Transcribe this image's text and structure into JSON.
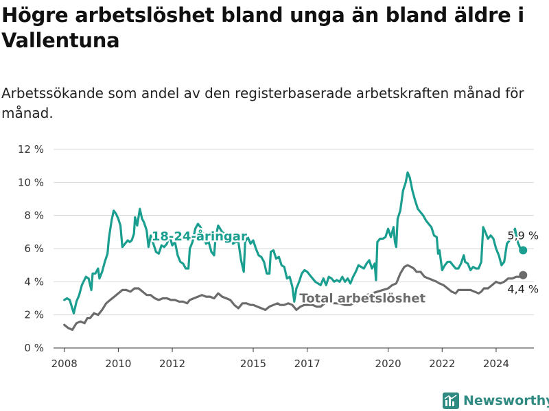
{
  "title": "Högre arbetslöshet bland unga än bland äldre i Vallentuna",
  "subtitle": "Arbetssökande som andel av den registerbaserade arbetskraften månad för månad.",
  "logo": {
    "text": "Newsworthy",
    "icon": "bar-chart-logo-icon"
  },
  "colors": {
    "youth": "#1a9e8f",
    "total": "#6b6b6b",
    "grid": "#d9d9d9",
    "text": "#333333",
    "logo": "#2f8a82"
  },
  "chart_data": {
    "type": "line",
    "ylim": [
      0,
      12
    ],
    "xlim": [
      2007.6,
      2025.4
    ],
    "yticks": [
      {
        "value": 0,
        "label": "0 %"
      },
      {
        "value": 2,
        "label": "2 %"
      },
      {
        "value": 4,
        "label": "4 %"
      },
      {
        "value": 6,
        "label": "6 %"
      },
      {
        "value": 8,
        "label": "8 %"
      },
      {
        "value": 10,
        "label": "10 %"
      },
      {
        "value": 12,
        "label": "12 %"
      }
    ],
    "xticks": [
      {
        "value": 2008,
        "label": "2008"
      },
      {
        "value": 2010,
        "label": "2010"
      },
      {
        "value": 2012,
        "label": "2012"
      },
      {
        "value": 2015,
        "label": "2015"
      },
      {
        "value": 2017,
        "label": "2017"
      },
      {
        "value": 2020,
        "label": "2020"
      },
      {
        "value": 2022,
        "label": "2022"
      },
      {
        "value": 2024,
        "label": "2024"
      }
    ],
    "grid": true,
    "series": [
      {
        "name": "18-24-åringar",
        "color": "#1a9e8f",
        "last_label": "5,9 %",
        "points": [
          [
            2008.0,
            2.9
          ],
          [
            2008.1,
            3.0
          ],
          [
            2008.2,
            2.9
          ],
          [
            2008.35,
            2.1
          ],
          [
            2008.45,
            2.8
          ],
          [
            2008.55,
            3.2
          ],
          [
            2008.65,
            3.8
          ],
          [
            2008.8,
            4.3
          ],
          [
            2008.9,
            4.2
          ],
          [
            2009.0,
            3.5
          ],
          [
            2009.05,
            4.5
          ],
          [
            2009.15,
            4.5
          ],
          [
            2009.25,
            4.8
          ],
          [
            2009.3,
            4.2
          ],
          [
            2009.4,
            4.6
          ],
          [
            2009.5,
            5.2
          ],
          [
            2009.6,
            5.7
          ],
          [
            2009.65,
            6.6
          ],
          [
            2009.75,
            7.7
          ],
          [
            2009.83,
            8.3
          ],
          [
            2009.92,
            8.1
          ],
          [
            2010.0,
            7.8
          ],
          [
            2010.08,
            7.4
          ],
          [
            2010.15,
            6.1
          ],
          [
            2010.25,
            6.3
          ],
          [
            2010.35,
            6.5
          ],
          [
            2010.42,
            6.4
          ],
          [
            2010.5,
            6.5
          ],
          [
            2010.58,
            6.9
          ],
          [
            2010.62,
            7.9
          ],
          [
            2010.7,
            7.4
          ],
          [
            2010.8,
            8.4
          ],
          [
            2010.88,
            7.8
          ],
          [
            2010.95,
            7.6
          ],
          [
            2011.05,
            7.1
          ],
          [
            2011.12,
            6.1
          ],
          [
            2011.2,
            6.8
          ],
          [
            2011.3,
            6.3
          ],
          [
            2011.4,
            5.8
          ],
          [
            2011.5,
            5.7
          ],
          [
            2011.6,
            6.2
          ],
          [
            2011.7,
            6.1
          ],
          [
            2011.8,
            6.3
          ],
          [
            2011.9,
            6.8
          ],
          [
            2012.0,
            6.2
          ],
          [
            2012.1,
            6.4
          ],
          [
            2012.2,
            5.6
          ],
          [
            2012.3,
            5.2
          ],
          [
            2012.4,
            5.1
          ],
          [
            2012.5,
            4.8
          ],
          [
            2012.6,
            4.8
          ],
          [
            2012.65,
            6.0
          ],
          [
            2012.75,
            6.4
          ],
          [
            2012.85,
            7.2
          ],
          [
            2012.95,
            7.5
          ],
          [
            2013.05,
            7.3
          ],
          [
            2013.15,
            6.9
          ],
          [
            2013.25,
            6.3
          ],
          [
            2013.35,
            6.4
          ],
          [
            2013.45,
            5.8
          ],
          [
            2013.55,
            5.6
          ],
          [
            2013.6,
            6.6
          ],
          [
            2013.7,
            7.4
          ],
          [
            2013.85,
            7.0
          ],
          [
            2014.05,
            6.8
          ],
          [
            2014.15,
            6.9
          ],
          [
            2014.25,
            6.3
          ],
          [
            2014.35,
            6.4
          ],
          [
            2014.45,
            6.4
          ],
          [
            2014.55,
            5.3
          ],
          [
            2014.65,
            4.6
          ],
          [
            2014.7,
            6.4
          ],
          [
            2014.8,
            6.7
          ],
          [
            2014.9,
            6.3
          ],
          [
            2015.0,
            6.5
          ],
          [
            2015.1,
            6.0
          ],
          [
            2015.2,
            5.6
          ],
          [
            2015.3,
            5.5
          ],
          [
            2015.4,
            5.2
          ],
          [
            2015.5,
            4.5
          ],
          [
            2015.6,
            4.5
          ],
          [
            2015.65,
            5.8
          ],
          [
            2015.75,
            5.9
          ],
          [
            2015.85,
            5.4
          ],
          [
            2015.95,
            5.5
          ],
          [
            2016.05,
            5.0
          ],
          [
            2016.15,
            4.9
          ],
          [
            2016.25,
            4.2
          ],
          [
            2016.35,
            4.3
          ],
          [
            2016.45,
            3.7
          ],
          [
            2016.52,
            2.8
          ],
          [
            2016.6,
            3.6
          ],
          [
            2016.7,
            4.0
          ],
          [
            2016.8,
            4.5
          ],
          [
            2016.9,
            4.7
          ],
          [
            2017.0,
            4.6
          ],
          [
            2017.1,
            4.4
          ],
          [
            2017.2,
            4.2
          ],
          [
            2017.3,
            4.0
          ],
          [
            2017.4,
            3.9
          ],
          [
            2017.5,
            3.8
          ],
          [
            2017.6,
            4.2
          ],
          [
            2017.7,
            3.8
          ],
          [
            2017.8,
            4.3
          ],
          [
            2017.9,
            4.2
          ],
          [
            2018.0,
            4.0
          ],
          [
            2018.1,
            4.1
          ],
          [
            2018.2,
            4.0
          ],
          [
            2018.3,
            4.3
          ],
          [
            2018.4,
            4.0
          ],
          [
            2018.5,
            4.2
          ],
          [
            2018.6,
            3.9
          ],
          [
            2018.7,
            4.3
          ],
          [
            2018.8,
            4.6
          ],
          [
            2018.9,
            5.0
          ],
          [
            2019.0,
            4.9
          ],
          [
            2019.1,
            4.8
          ],
          [
            2019.2,
            5.1
          ],
          [
            2019.3,
            5.3
          ],
          [
            2019.4,
            4.8
          ],
          [
            2019.5,
            5.1
          ],
          [
            2019.55,
            4.1
          ],
          [
            2019.6,
            6.4
          ],
          [
            2019.7,
            6.6
          ],
          [
            2019.8,
            6.6
          ],
          [
            2019.9,
            6.7
          ],
          [
            2020.0,
            7.2
          ],
          [
            2020.1,
            6.7
          ],
          [
            2020.2,
            7.3
          ],
          [
            2020.25,
            6.4
          ],
          [
            2020.3,
            6.1
          ],
          [
            2020.35,
            7.8
          ],
          [
            2020.45,
            8.3
          ],
          [
            2020.55,
            9.5
          ],
          [
            2020.65,
            10.0
          ],
          [
            2020.72,
            10.6
          ],
          [
            2020.8,
            10.3
          ],
          [
            2020.9,
            9.5
          ],
          [
            2021.0,
            8.9
          ],
          [
            2021.1,
            8.4
          ],
          [
            2021.2,
            8.2
          ],
          [
            2021.3,
            8.0
          ],
          [
            2021.4,
            7.7
          ],
          [
            2021.5,
            7.5
          ],
          [
            2021.6,
            7.3
          ],
          [
            2021.7,
            6.8
          ],
          [
            2021.8,
            6.7
          ],
          [
            2021.85,
            5.7
          ],
          [
            2021.9,
            5.9
          ],
          [
            2022.0,
            4.7
          ],
          [
            2022.1,
            5.0
          ],
          [
            2022.2,
            5.2
          ],
          [
            2022.3,
            5.2
          ],
          [
            2022.4,
            5.0
          ],
          [
            2022.5,
            4.8
          ],
          [
            2022.6,
            4.8
          ],
          [
            2022.7,
            5.1
          ],
          [
            2022.8,
            5.6
          ],
          [
            2022.85,
            5.2
          ],
          [
            2022.95,
            5.1
          ],
          [
            2023.05,
            4.7
          ],
          [
            2023.15,
            4.9
          ],
          [
            2023.25,
            4.8
          ],
          [
            2023.35,
            4.8
          ],
          [
            2023.45,
            5.2
          ],
          [
            2023.52,
            7.3
          ],
          [
            2023.6,
            7.0
          ],
          [
            2023.7,
            6.6
          ],
          [
            2023.8,
            6.8
          ],
          [
            2023.9,
            6.6
          ],
          [
            2024.0,
            6.0
          ],
          [
            2024.1,
            5.6
          ],
          [
            2024.2,
            5.0
          ],
          [
            2024.3,
            5.2
          ],
          [
            2024.4,
            6.3
          ],
          [
            2024.5,
            6.5
          ],
          [
            2024.6,
            6.8
          ],
          [
            2024.7,
            7.2
          ],
          [
            2024.8,
            6.4
          ],
          [
            2024.9,
            6.0
          ],
          [
            2025.0,
            5.9
          ]
        ]
      },
      {
        "name": "Total arbetslöshet",
        "color": "#6b6b6b",
        "last_label": "4,4 %",
        "points": [
          [
            2008.0,
            1.4
          ],
          [
            2008.15,
            1.2
          ],
          [
            2008.3,
            1.1
          ],
          [
            2008.45,
            1.5
          ],
          [
            2008.6,
            1.6
          ],
          [
            2008.75,
            1.5
          ],
          [
            2008.85,
            1.8
          ],
          [
            2008.95,
            1.8
          ],
          [
            2009.1,
            2.1
          ],
          [
            2009.25,
            2.0
          ],
          [
            2009.4,
            2.3
          ],
          [
            2009.55,
            2.7
          ],
          [
            2009.7,
            2.9
          ],
          [
            2009.85,
            3.1
          ],
          [
            2010.0,
            3.3
          ],
          [
            2010.15,
            3.5
          ],
          [
            2010.3,
            3.5
          ],
          [
            2010.45,
            3.4
          ],
          [
            2010.6,
            3.6
          ],
          [
            2010.75,
            3.6
          ],
          [
            2010.9,
            3.4
          ],
          [
            2011.05,
            3.2
          ],
          [
            2011.2,
            3.2
          ],
          [
            2011.35,
            3.0
          ],
          [
            2011.5,
            2.9
          ],
          [
            2011.65,
            3.0
          ],
          [
            2011.8,
            3.0
          ],
          [
            2011.95,
            2.9
          ],
          [
            2012.1,
            2.9
          ],
          [
            2012.25,
            2.8
          ],
          [
            2012.4,
            2.8
          ],
          [
            2012.55,
            2.7
          ],
          [
            2012.65,
            2.9
          ],
          [
            2012.8,
            3.0
          ],
          [
            2012.95,
            3.1
          ],
          [
            2013.1,
            3.2
          ],
          [
            2013.25,
            3.1
          ],
          [
            2013.4,
            3.1
          ],
          [
            2013.55,
            3.0
          ],
          [
            2013.7,
            3.3
          ],
          [
            2013.85,
            3.1
          ],
          [
            2014.0,
            3.0
          ],
          [
            2014.15,
            2.9
          ],
          [
            2014.3,
            2.6
          ],
          [
            2014.45,
            2.4
          ],
          [
            2014.6,
            2.7
          ],
          [
            2014.75,
            2.7
          ],
          [
            2014.9,
            2.6
          ],
          [
            2015.0,
            2.6
          ],
          [
            2015.15,
            2.5
          ],
          [
            2015.3,
            2.4
          ],
          [
            2015.45,
            2.3
          ],
          [
            2015.6,
            2.5
          ],
          [
            2015.75,
            2.6
          ],
          [
            2015.9,
            2.7
          ],
          [
            2016.0,
            2.6
          ],
          [
            2016.15,
            2.6
          ],
          [
            2016.3,
            2.7
          ],
          [
            2016.45,
            2.6
          ],
          [
            2016.6,
            2.3
          ],
          [
            2016.75,
            2.5
          ],
          [
            2016.9,
            2.6
          ],
          [
            2017.05,
            2.6
          ],
          [
            2017.2,
            2.6
          ],
          [
            2017.35,
            2.5
          ],
          [
            2017.5,
            2.5
          ],
          [
            2017.65,
            2.7
          ],
          [
            2017.8,
            2.8
          ],
          [
            2018.0,
            2.7
          ],
          [
            2018.2,
            2.7
          ],
          [
            2018.4,
            2.6
          ],
          [
            2018.6,
            2.6
          ],
          [
            2018.8,
            2.8
          ],
          [
            2019.0,
            3.0
          ],
          [
            2019.2,
            3.2
          ],
          [
            2019.4,
            3.3
          ],
          [
            2019.6,
            3.4
          ],
          [
            2019.8,
            3.5
          ],
          [
            2020.0,
            3.6
          ],
          [
            2020.15,
            3.8
          ],
          [
            2020.3,
            3.9
          ],
          [
            2020.45,
            4.5
          ],
          [
            2020.6,
            4.9
          ],
          [
            2020.72,
            5.0
          ],
          [
            2020.85,
            4.9
          ],
          [
            2020.95,
            4.8
          ],
          [
            2021.05,
            4.6
          ],
          [
            2021.2,
            4.6
          ],
          [
            2021.35,
            4.3
          ],
          [
            2021.5,
            4.2
          ],
          [
            2021.65,
            4.1
          ],
          [
            2021.8,
            4.0
          ],
          [
            2021.9,
            3.9
          ],
          [
            2022.05,
            3.8
          ],
          [
            2022.2,
            3.6
          ],
          [
            2022.35,
            3.4
          ],
          [
            2022.5,
            3.3
          ],
          [
            2022.6,
            3.5
          ],
          [
            2022.75,
            3.5
          ],
          [
            2022.9,
            3.5
          ],
          [
            2023.05,
            3.5
          ],
          [
            2023.2,
            3.4
          ],
          [
            2023.35,
            3.3
          ],
          [
            2023.45,
            3.4
          ],
          [
            2023.55,
            3.6
          ],
          [
            2023.7,
            3.6
          ],
          [
            2023.85,
            3.8
          ],
          [
            2024.0,
            4.0
          ],
          [
            2024.15,
            3.9
          ],
          [
            2024.3,
            4.0
          ],
          [
            2024.45,
            4.2
          ],
          [
            2024.6,
            4.2
          ],
          [
            2024.75,
            4.3
          ],
          [
            2024.9,
            4.3
          ],
          [
            2025.0,
            4.4
          ]
        ]
      }
    ]
  }
}
